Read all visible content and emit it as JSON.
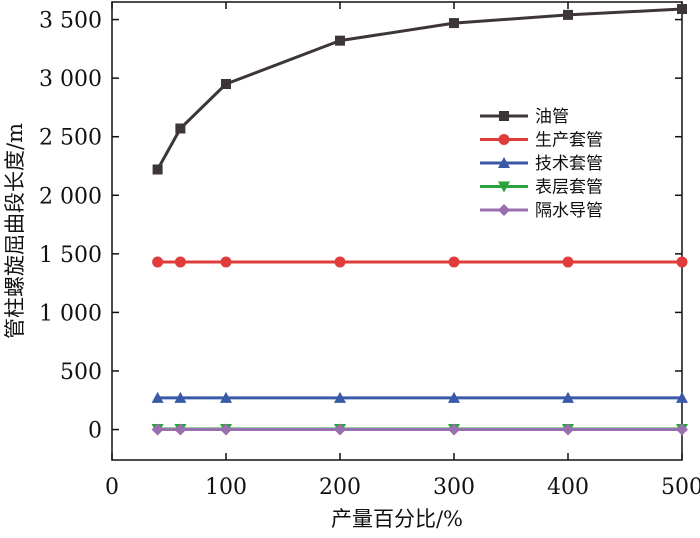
{
  "chart_data": {
    "type": "line",
    "xlabel": "产量百分比/%",
    "ylabel": "管柱螺旋屈曲段长度/m",
    "xlim": [
      0,
      500
    ],
    "ylim": [
      -260,
      3650
    ],
    "x_ticks": [
      0,
      100,
      200,
      300,
      400,
      500
    ],
    "x_tick_labels": [
      "0",
      "100",
      "200",
      "300",
      "400",
      "500"
    ],
    "y_ticks": [
      0,
      500,
      1000,
      1500,
      2000,
      2500,
      3000,
      3500
    ],
    "y_tick_labels": [
      "0",
      "500",
      "1 000",
      "1 500",
      "2 000",
      "2 500",
      "3 000",
      "3 500"
    ],
    "x": [
      40,
      60,
      100,
      200,
      300,
      400,
      500
    ],
    "legend_position": "right",
    "grid": false,
    "series": [
      {
        "name": "油管",
        "marker": "square",
        "color": "#3d3636",
        "values": [
          2220,
          2570,
          2950,
          3320,
          3470,
          3540,
          3590
        ]
      },
      {
        "name": "生产套管",
        "marker": "circle",
        "color": "#e03c3c",
        "values": [
          1430,
          1430,
          1430,
          1430,
          1430,
          1430,
          1430
        ]
      },
      {
        "name": "技术套管",
        "marker": "triangle-up",
        "color": "#3a5aa8",
        "values": [
          270,
          270,
          270,
          270,
          270,
          270,
          270
        ]
      },
      {
        "name": "表层套管",
        "marker": "triangle-down",
        "color": "#2aa33b",
        "values": [
          5,
          5,
          5,
          5,
          5,
          5,
          5
        ]
      },
      {
        "name": "隔水导管",
        "marker": "diamond",
        "color": "#9a6fb0",
        "values": [
          0,
          0,
          0,
          0,
          0,
          0,
          0
        ]
      }
    ]
  }
}
